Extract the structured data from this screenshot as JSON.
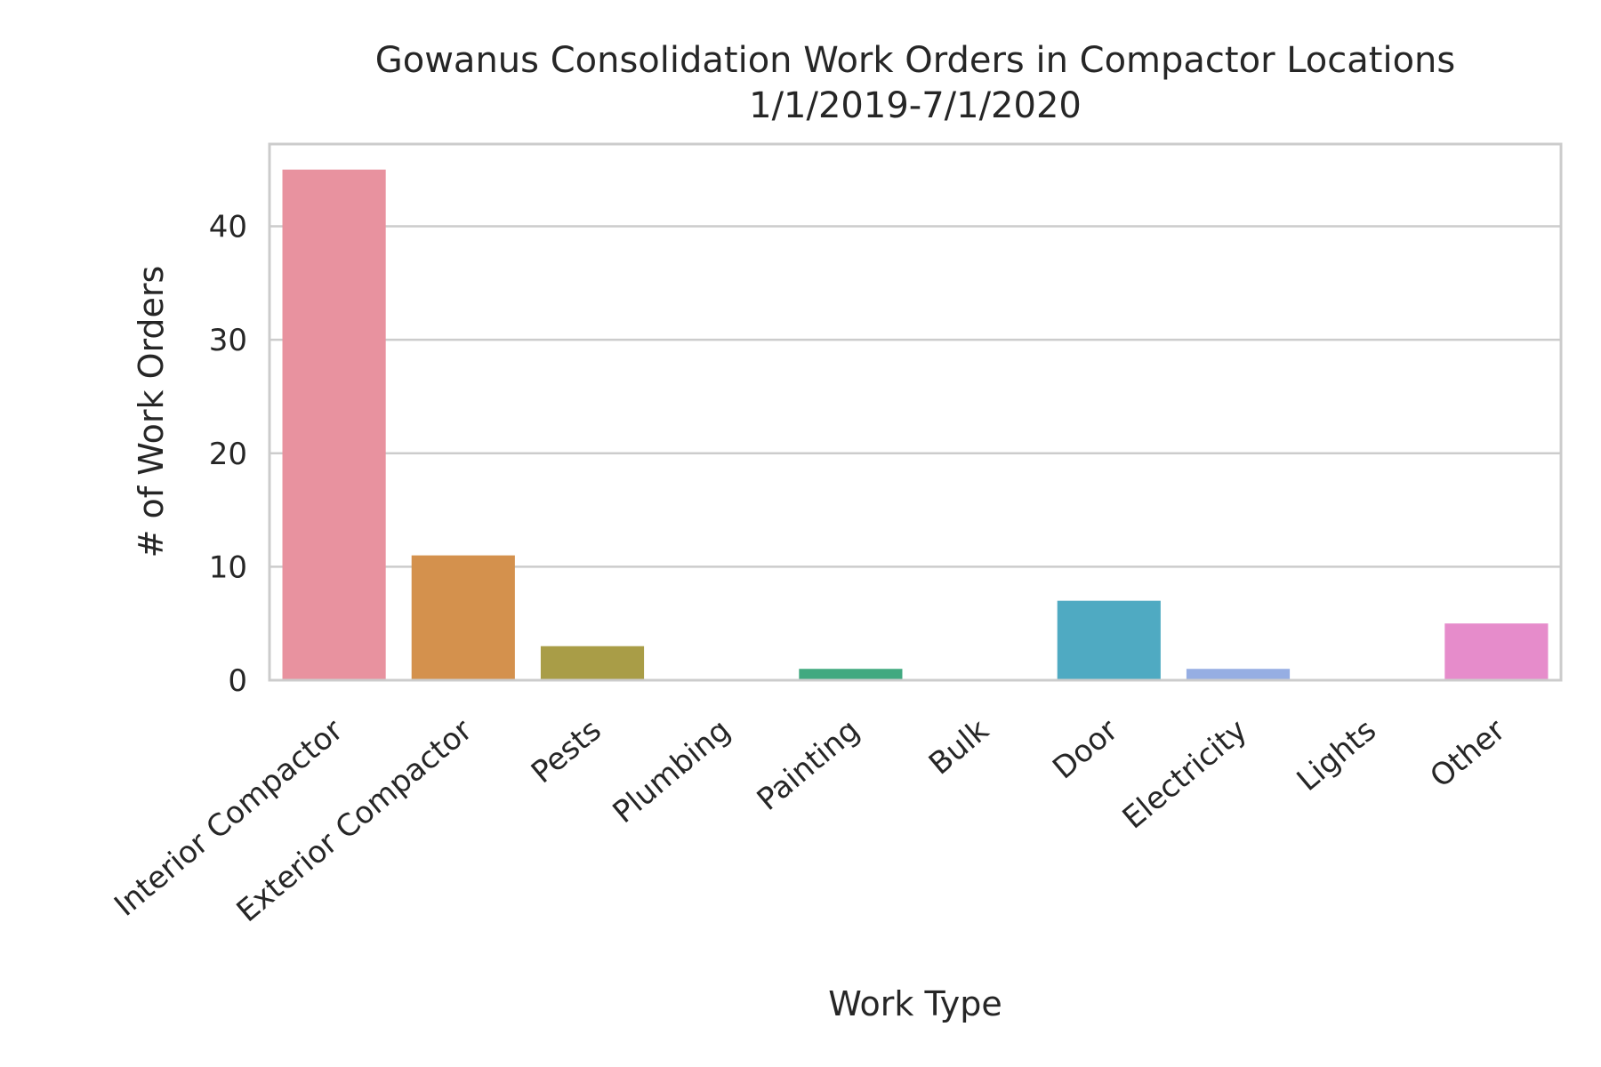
{
  "chart_data": {
    "type": "bar",
    "title_lines": [
      "Gowanus Consolidation Work Orders in Compactor Locations",
      "1/1/2019-7/1/2020"
    ],
    "xlabel": "Work Type",
    "ylabel": "# of Work Orders",
    "categories": [
      "Interior Compactor",
      "Exterior Compactor",
      "Pests",
      "Plumbing",
      "Painting",
      "Bulk",
      "Door",
      "Electricity",
      "Lights",
      "Other"
    ],
    "values": [
      45,
      11,
      3,
      0,
      1,
      0,
      7,
      1,
      0,
      5
    ],
    "colors": [
      "#e8929f",
      "#d4914d",
      "#a99d47",
      "#9aa43f",
      "#41a980",
      "#44a7a2",
      "#4faac2",
      "#96aee3",
      "#c88fe3",
      "#e68ccb"
    ],
    "yticks": [
      0,
      10,
      20,
      30,
      40
    ],
    "ylim": [
      0,
      47.25
    ],
    "grid": true,
    "legend": "none"
  }
}
